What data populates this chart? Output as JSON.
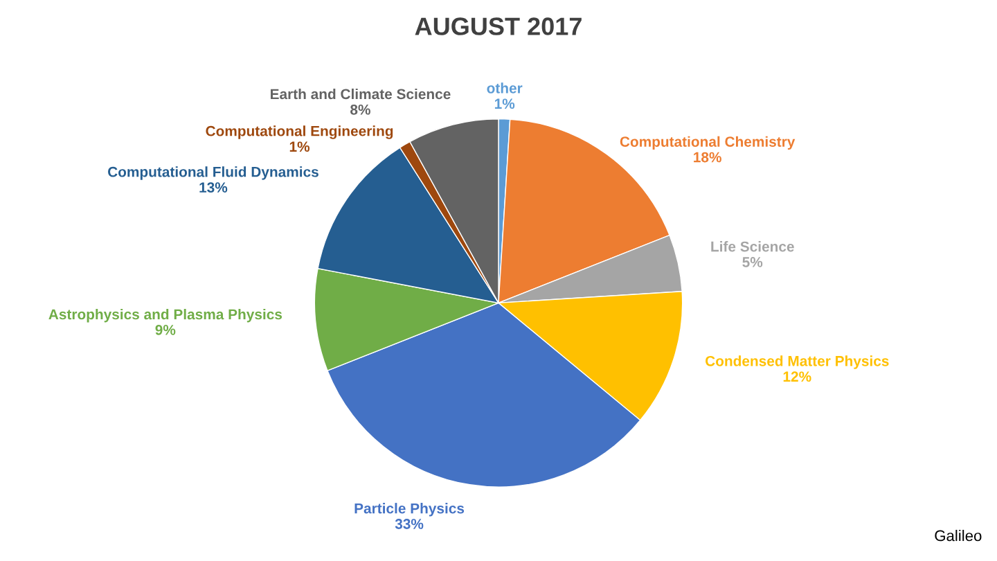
{
  "chart_data": {
    "type": "pie",
    "title": "AUGUST 2017",
    "categories": [
      "other",
      "Computational Chemistry",
      "Life Science",
      "Condensed Matter Physics",
      "Particle Physics",
      "Astrophysics and Plasma Physics",
      "Computational Fluid Dynamics",
      "Computational Engineering",
      "Earth and Climate Science"
    ],
    "values": [
      1,
      18,
      5,
      12,
      33,
      9,
      13,
      1,
      8
    ],
    "value_labels": [
      "1%",
      "18%",
      "5%",
      "12%",
      "33%",
      "9%",
      "13%",
      "1%",
      "8%"
    ],
    "colors": [
      "#5b9bd5",
      "#ed7d31",
      "#a5a5a5",
      "#ffc000",
      "#4472c4",
      "#70ad47",
      "#255e91",
      "#9e480e",
      "#636363"
    ],
    "annotations": [
      "Galileo"
    ]
  }
}
